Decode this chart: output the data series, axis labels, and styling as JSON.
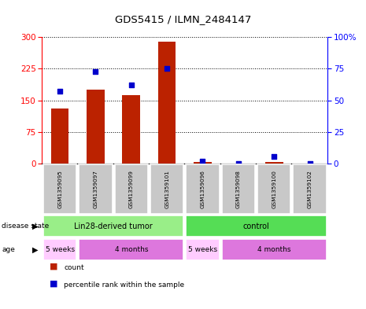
{
  "title": "GDS5415 / ILMN_2484147",
  "samples": [
    "GSM1359095",
    "GSM1359097",
    "GSM1359099",
    "GSM1359101",
    "GSM1359096",
    "GSM1359098",
    "GSM1359100",
    "GSM1359102"
  ],
  "counts": [
    130,
    175,
    163,
    290,
    5,
    1,
    5,
    1
  ],
  "percentiles": [
    57,
    73,
    62,
    75,
    2,
    0,
    6,
    0
  ],
  "left_ylim": [
    0,
    300
  ],
  "right_ylim": [
    0,
    100
  ],
  "left_yticks": [
    0,
    75,
    150,
    225,
    300
  ],
  "right_yticks": [
    0,
    25,
    50,
    75,
    100
  ],
  "right_yticklabels": [
    "0",
    "25",
    "50",
    "75",
    "100%"
  ],
  "bar_color": "#bb2200",
  "dot_color": "#0000cc",
  "label_box_color": "#c8c8c8",
  "disease_state_label": "disease state",
  "age_label": "age",
  "disease_groups": [
    {
      "label": "Lin28-derived tumor",
      "start": 0,
      "end": 4,
      "color": "#99ee88"
    },
    {
      "label": "control",
      "start": 4,
      "end": 8,
      "color": "#55dd55"
    }
  ],
  "age_groups": [
    {
      "label": "5 weeks",
      "start": 0,
      "end": 1,
      "color": "#ffccff"
    },
    {
      "label": "4 months",
      "start": 1,
      "end": 4,
      "color": "#dd77dd"
    },
    {
      "label": "5 weeks",
      "start": 4,
      "end": 5,
      "color": "#ffccff"
    },
    {
      "label": "4 months",
      "start": 5,
      "end": 8,
      "color": "#dd77dd"
    }
  ],
  "legend_count_label": "count",
  "legend_pct_label": "percentile rank within the sample"
}
